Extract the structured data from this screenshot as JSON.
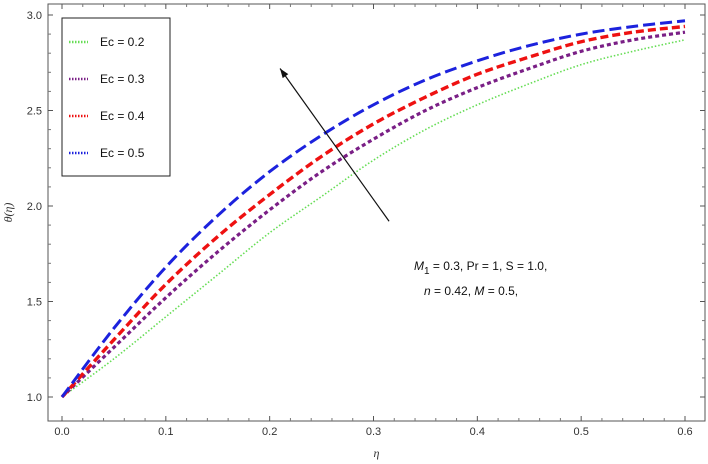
{
  "chart_data": {
    "type": "line",
    "xlabel": "η",
    "ylabel": "θ(η)",
    "xlim": [
      0.0,
      0.6
    ],
    "ylim": [
      1.0,
      3.0
    ],
    "xticks": [
      "0.0",
      "0.1",
      "0.2",
      "0.3",
      "0.4",
      "0.5",
      "0.6"
    ],
    "yticks": [
      "1.0",
      "1.5",
      "2.0",
      "2.5",
      "3.0"
    ],
    "grid": false,
    "legend_position": "top-left",
    "series": [
      {
        "name": "Ec = 0.2",
        "color": "#66dd55",
        "style": "dotted",
        "x": [
          0,
          0.05,
          0.1,
          0.15,
          0.2,
          0.25,
          0.3,
          0.35,
          0.4,
          0.45,
          0.5,
          0.55,
          0.6
        ],
        "y": [
          1.0,
          1.2,
          1.42,
          1.64,
          1.86,
          2.05,
          2.24,
          2.4,
          2.53,
          2.64,
          2.74,
          2.81,
          2.87
        ]
      },
      {
        "name": "Ec = 0.3",
        "color": "#7a1f86",
        "style": "dotted",
        "x": [
          0,
          0.05,
          0.1,
          0.15,
          0.2,
          0.25,
          0.3,
          0.35,
          0.4,
          0.45,
          0.5,
          0.55,
          0.6
        ],
        "y": [
          1.0,
          1.26,
          1.52,
          1.76,
          1.98,
          2.18,
          2.35,
          2.5,
          2.62,
          2.72,
          2.81,
          2.87,
          2.91
        ]
      },
      {
        "name": "Ec = 0.4",
        "color": "#ee1111",
        "style": "dotted",
        "x": [
          0,
          0.05,
          0.1,
          0.15,
          0.2,
          0.25,
          0.3,
          0.35,
          0.4,
          0.45,
          0.5,
          0.55,
          0.6
        ],
        "y": [
          1.0,
          1.3,
          1.59,
          1.84,
          2.06,
          2.26,
          2.43,
          2.57,
          2.69,
          2.78,
          2.86,
          2.91,
          2.94
        ]
      },
      {
        "name": "Ec = 0.5",
        "color": "#1c22dd",
        "style": "dotted",
        "x": [
          0,
          0.05,
          0.1,
          0.15,
          0.2,
          0.25,
          0.3,
          0.35,
          0.4,
          0.45,
          0.5,
          0.55,
          0.6
        ],
        "y": [
          1.0,
          1.36,
          1.68,
          1.95,
          2.18,
          2.37,
          2.53,
          2.66,
          2.76,
          2.84,
          2.9,
          2.94,
          2.97
        ]
      }
    ],
    "annotation_line1": {
      "m": "M",
      "m_sub": "1",
      "rest": " = 0.3, Pr = 1, S = 1.0,"
    },
    "annotation_line2": {
      "n": "n",
      "n_val": " = 0.42, ",
      "M": "M",
      "M_val": " = 0.5,"
    },
    "arrow": {
      "from": [
        0.315,
        1.92
      ],
      "to": [
        0.21,
        2.72
      ]
    }
  }
}
